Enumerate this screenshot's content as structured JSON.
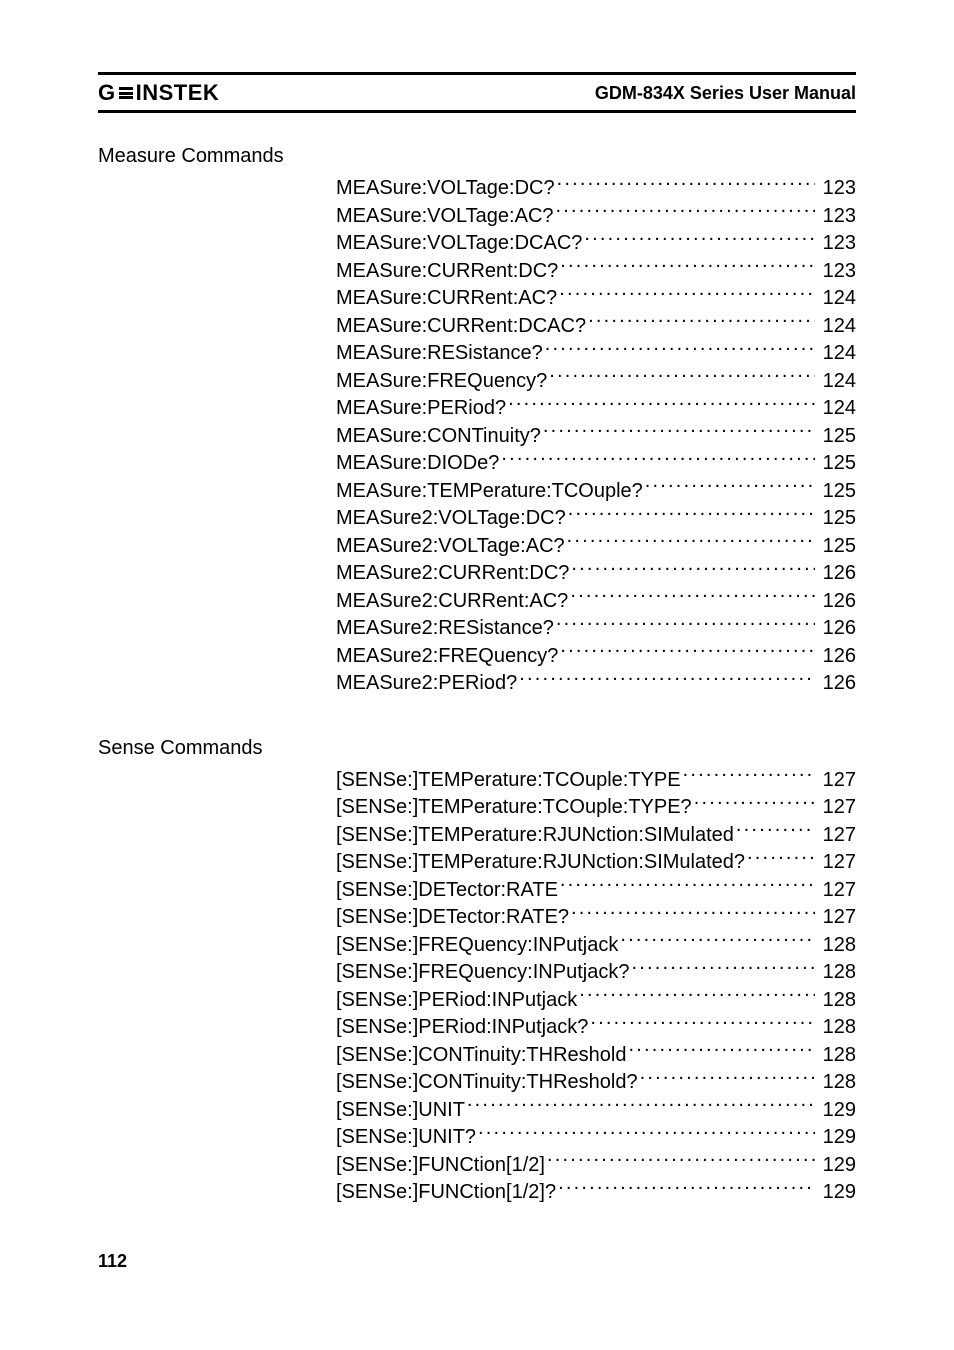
{
  "header": {
    "logo_prefix": "G",
    "logo_suffix": "INSTEK",
    "manual_title": "GDM-834X Series User Manual"
  },
  "colors": {
    "text": "#000000",
    "background": "#ffffff",
    "rule": "#000000"
  },
  "typography": {
    "body_font": "Optima / Candara / Segoe UI",
    "body_size_pt": 15,
    "heading_size_pt": 15,
    "header_title_size_pt": 14,
    "footer_size_pt": 14,
    "logo_weight": "900"
  },
  "sections": [
    {
      "heading": "Measure Commands",
      "entries": [
        {
          "label": "MEASure:VOLTage:DC?",
          "page": "123"
        },
        {
          "label": "MEASure:VOLTage:AC?",
          "page": "123"
        },
        {
          "label": "MEASure:VOLTage:DCAC?",
          "page": "123"
        },
        {
          "label": "MEASure:CURRent:DC?",
          "page": "123"
        },
        {
          "label": "MEASure:CURRent:AC?",
          "page": "124"
        },
        {
          "label": "MEASure:CURRent:DCAC?",
          "page": "124"
        },
        {
          "label": "MEASure:RESistance?",
          "page": "124"
        },
        {
          "label": "MEASure:FREQuency?",
          "page": "124"
        },
        {
          "label": "MEASure:PERiod?",
          "page": "124"
        },
        {
          "label": "MEASure:CONTinuity?",
          "page": "125"
        },
        {
          "label": "MEASure:DIODe?",
          "page": "125"
        },
        {
          "label": "MEASure:TEMPerature:TCOuple?",
          "page": "125"
        },
        {
          "label": "MEASure2:VOLTage:DC?",
          "page": "125"
        },
        {
          "label": "MEASure2:VOLTage:AC?",
          "page": "125"
        },
        {
          "label": "MEASure2:CURRent:DC?",
          "page": "126"
        },
        {
          "label": "MEASure2:CURRent:AC?",
          "page": "126"
        },
        {
          "label": "MEASure2:RESistance?",
          "page": "126"
        },
        {
          "label": "MEASure2:FREQuency?",
          "page": "126"
        },
        {
          "label": "MEASure2:PERiod?",
          "page": "126"
        }
      ]
    },
    {
      "heading": "Sense Commands",
      "entries": [
        {
          "label": "[SENSe:]TEMPerature:TCOuple:TYPE",
          "page": "127"
        },
        {
          "label": "[SENSe:]TEMPerature:TCOuple:TYPE?",
          "page": "127"
        },
        {
          "label": "[SENSe:]TEMPerature:RJUNction:SIMulated",
          "page": "127"
        },
        {
          "label": "[SENSe:]TEMPerature:RJUNction:SIMulated?",
          "page": "127"
        },
        {
          "label": "[SENSe:]DETector:RATE",
          "page": "127"
        },
        {
          "label": "[SENSe:]DETector:RATE?",
          "page": "127"
        },
        {
          "label": "[SENSe:]FREQuency:INPutjack",
          "page": "128"
        },
        {
          "label": "[SENSe:]FREQuency:INPutjack?",
          "page": "128"
        },
        {
          "label": "[SENSe:]PERiod:INPutjack",
          "page": "128"
        },
        {
          "label": "[SENSe:]PERiod:INPutjack?",
          "page": "128"
        },
        {
          "label": "[SENSe:]CONTinuity:THReshold",
          "page": "128"
        },
        {
          "label": "[SENSe:]CONTinuity:THReshold?",
          "page": "128"
        },
        {
          "label": "[SENSe:]UNIT",
          "page": "129"
        },
        {
          "label": "[SENSe:]UNIT?",
          "page": "129"
        },
        {
          "label": "[SENSe:]FUNCtion[1/2]",
          "page": "129"
        },
        {
          "label": "[SENSe:]FUNCtion[1/2]?",
          "page": "129"
        }
      ]
    }
  ],
  "footer": {
    "page_number": "112"
  }
}
